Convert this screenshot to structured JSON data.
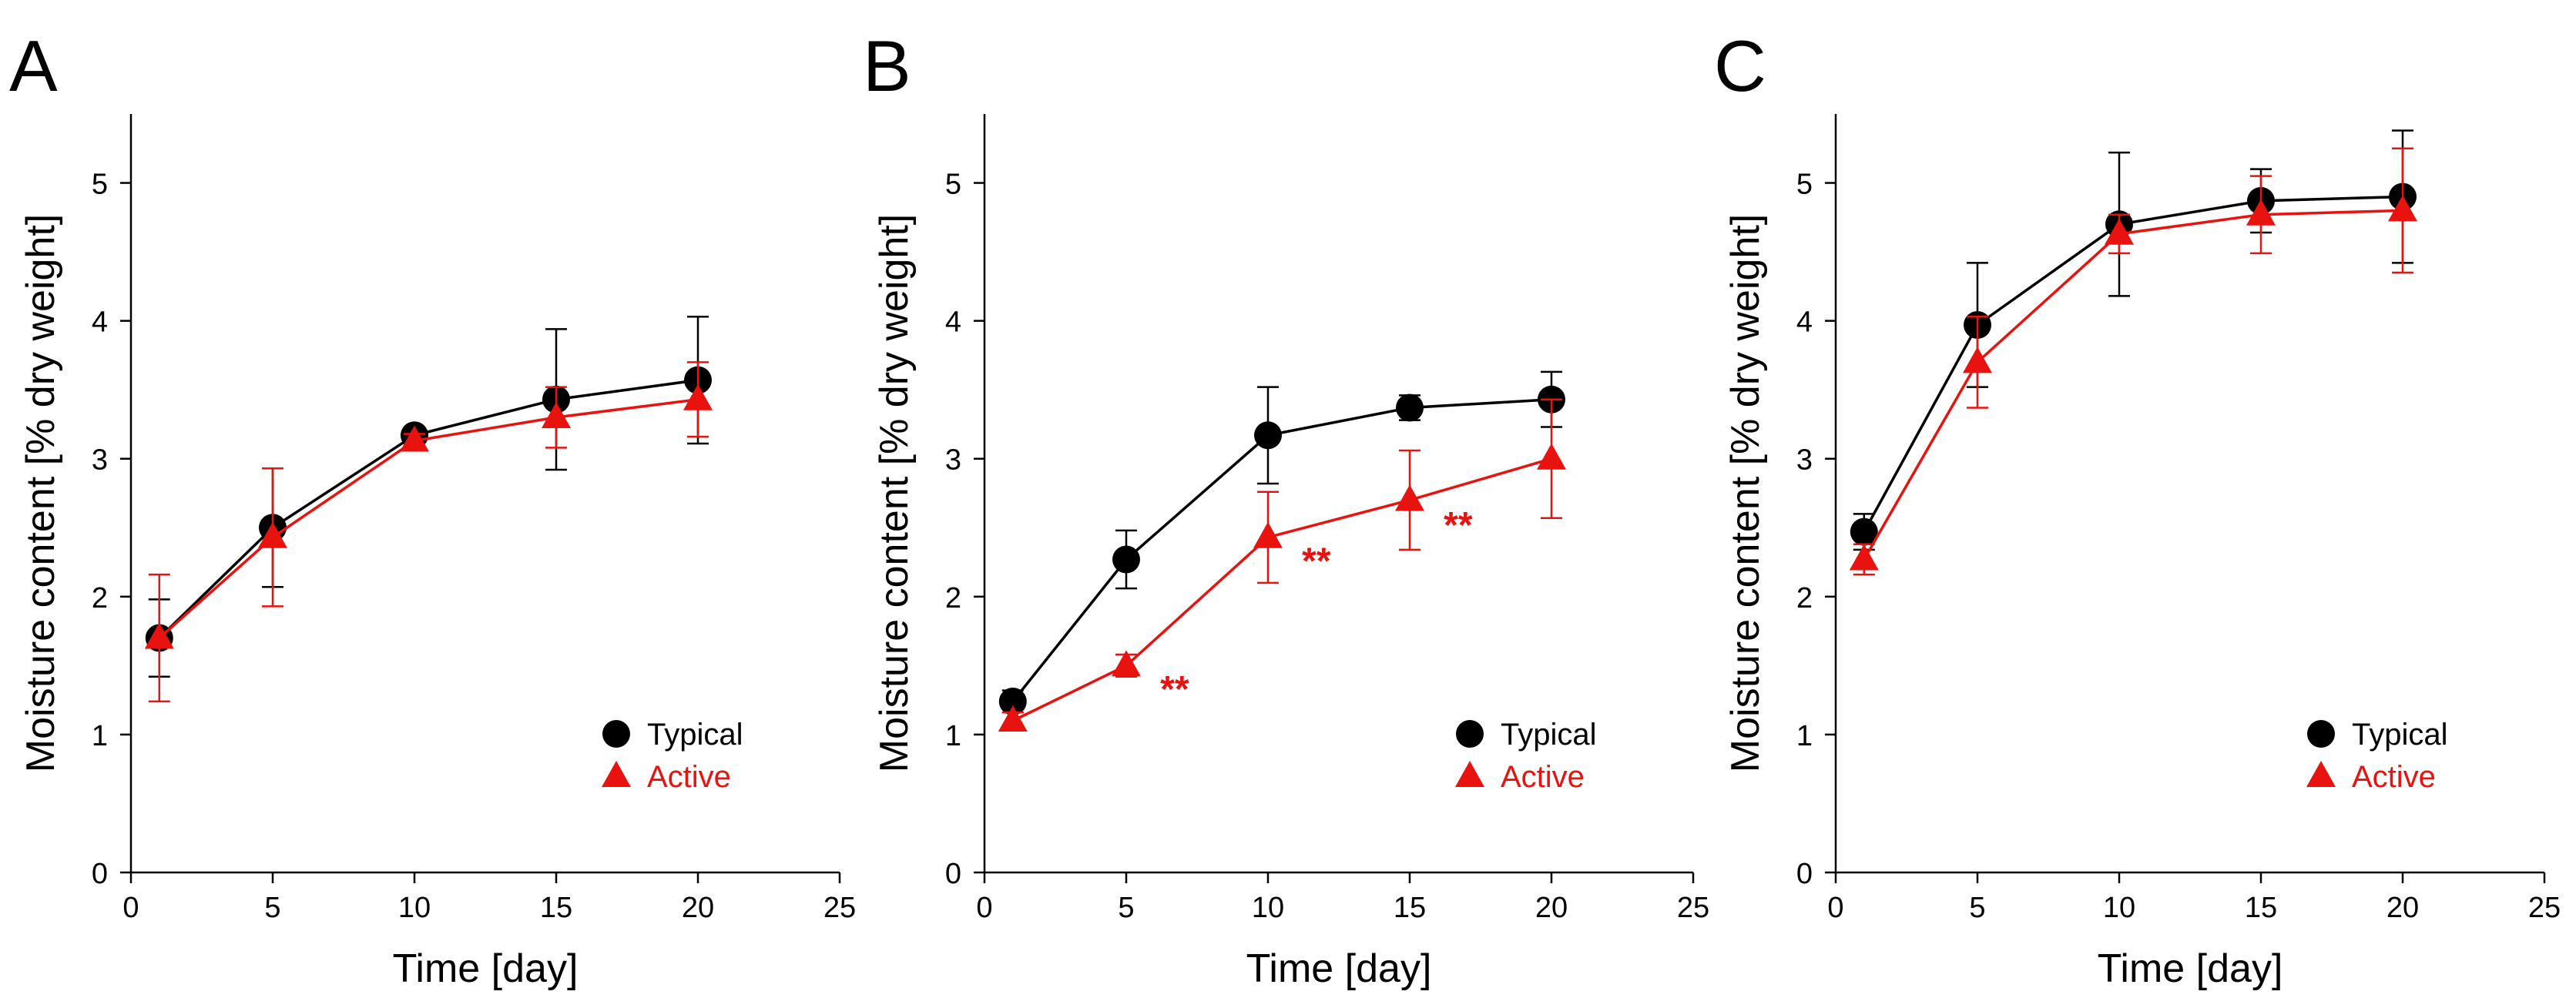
{
  "colors": {
    "typical": "#000000",
    "active": "#e8120f",
    "axis": "#000000",
    "background": "#ffffff"
  },
  "chart_data": [
    {
      "type": "line",
      "panel_label": "A",
      "xlabel": "Time [day]",
      "ylabel": "Moisture content [% dry weight]",
      "xlim": [
        0,
        25
      ],
      "ylim": [
        0,
        5.5
      ],
      "xticks": [
        0,
        5,
        10,
        15,
        20,
        25
      ],
      "yticks": [
        0,
        1,
        2,
        3,
        4,
        5
      ],
      "grid": false,
      "legend_position": "bottom-right",
      "x": [
        1,
        5,
        10,
        15,
        20
      ],
      "series": [
        {
          "name": "Typical",
          "marker": "circle",
          "color": "#000000",
          "values": [
            1.7,
            2.5,
            3.17,
            3.43,
            3.57
          ],
          "errors": [
            0.28,
            0.43,
            0.03,
            0.51,
            0.46
          ]
        },
        {
          "name": "Active",
          "marker": "triangle",
          "color": "#e8120f",
          "values": [
            1.7,
            2.43,
            3.13,
            3.3,
            3.43
          ],
          "errors": [
            0.46,
            0.5,
            0.05,
            0.22,
            0.27
          ]
        }
      ],
      "annotations": []
    },
    {
      "type": "line",
      "panel_label": "B",
      "xlabel": "Time [day]",
      "ylabel": "Moisture content [% dry weight]",
      "xlim": [
        0,
        25
      ],
      "ylim": [
        0,
        5.5
      ],
      "xticks": [
        0,
        5,
        10,
        15,
        20,
        25
      ],
      "yticks": [
        0,
        1,
        2,
        3,
        4,
        5
      ],
      "grid": false,
      "legend_position": "bottom-right",
      "x": [
        1,
        5,
        10,
        15,
        20
      ],
      "series": [
        {
          "name": "Typical",
          "marker": "circle",
          "color": "#000000",
          "values": [
            1.24,
            2.27,
            3.17,
            3.37,
            3.43
          ],
          "errors": [
            0.08,
            0.21,
            0.35,
            0.09,
            0.2
          ]
        },
        {
          "name": "Active",
          "marker": "triangle",
          "color": "#e8120f",
          "values": [
            1.1,
            1.5,
            2.43,
            2.7,
            3.0
          ],
          "errors": [
            0.06,
            0.08,
            0.33,
            0.36,
            0.43
          ]
        }
      ],
      "annotations": [
        {
          "text": "**",
          "x": 6.2,
          "y": 1.24,
          "color": "#e8120f"
        },
        {
          "text": "**",
          "x": 11.2,
          "y": 2.17,
          "color": "#e8120f"
        },
        {
          "text": "**",
          "x": 16.2,
          "y": 2.43,
          "color": "#e8120f"
        }
      ]
    },
    {
      "type": "line",
      "panel_label": "C",
      "xlabel": "Time [day]",
      "ylabel": "Moisture content [% dry weight]",
      "xlim": [
        0,
        25
      ],
      "ylim": [
        0,
        5.5
      ],
      "xticks": [
        0,
        5,
        10,
        15,
        20,
        25
      ],
      "yticks": [
        0,
        1,
        2,
        3,
        4,
        5
      ],
      "grid": false,
      "legend_position": "bottom-right",
      "x": [
        1,
        5,
        10,
        15,
        20
      ],
      "series": [
        {
          "name": "Typical",
          "marker": "circle",
          "color": "#000000",
          "values": [
            2.47,
            3.97,
            4.7,
            4.87,
            4.9
          ],
          "errors": [
            0.13,
            0.45,
            0.52,
            0.23,
            0.48
          ]
        },
        {
          "name": "Active",
          "marker": "triangle",
          "color": "#e8120f",
          "values": [
            2.27,
            3.7,
            4.63,
            4.77,
            4.8
          ],
          "errors": [
            0.11,
            0.33,
            0.14,
            0.28,
            0.45
          ]
        }
      ],
      "annotations": []
    }
  ]
}
